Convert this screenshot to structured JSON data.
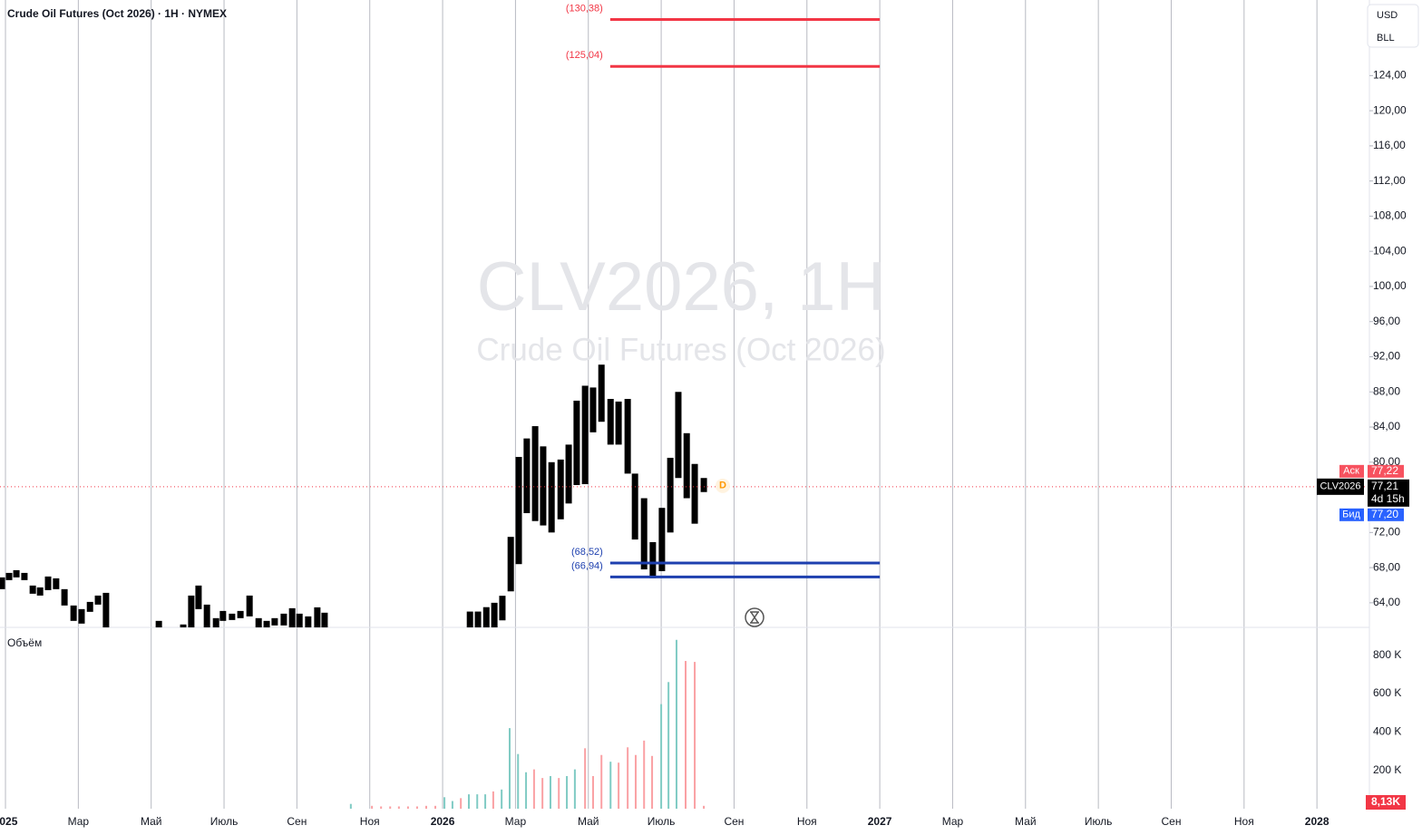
{
  "chart_data": [
    {
      "type": "candlestick",
      "title": "Crude Oil Futures (Oct 2026) · 1H · NYMEX",
      "watermark": {
        "symbol": "CLV2026, 1H",
        "description": "Crude Oil Futures (Oct 2026)"
      },
      "color": "#000000",
      "x": [
        -0.1,
        0.1,
        0.3,
        0.52,
        0.75,
        0.95,
        1.17,
        1.39,
        1.62,
        1.87,
        2.09,
        2.32,
        2.54,
        2.76,
        4.21,
        4.88,
        5.1,
        5.3,
        5.53,
        5.78,
        5.97,
        6.22,
        6.45,
        6.7,
        6.95,
        7.17,
        7.39,
        7.64,
        7.87,
        8.07,
        8.31,
        8.56,
        8.76,
        12.75,
        12.97,
        13.2,
        13.42,
        13.64,
        13.87,
        14.09,
        14.31,
        14.54,
        14.76,
        14.99,
        15.24,
        15.46,
        15.68,
        15.91,
        16.13,
        16.36,
        16.61,
        16.83,
        17.08,
        17.28,
        17.53,
        17.77,
        18.02,
        18.25,
        18.47,
        18.7,
        18.92,
        19.17
      ],
      "open": [
        66.89,
        67.4,
        67.71,
        67.4,
        65.96,
        65.75,
        66.99,
        66.78,
        65.55,
        63.69,
        63.28,
        64.1,
        64.82,
        65.13,
        61.94,
        61.53,
        64.82,
        65.96,
        63.79,
        62.25,
        63.07,
        62.76,
        63.07,
        64.82,
        62.25,
        61.94,
        62.25,
        62.76,
        63.38,
        62.76,
        62.45,
        63.48,
        62.87,
        63.0,
        63.0,
        63.5,
        64.0,
        64.8,
        71.5,
        80.6,
        82.7,
        84.1,
        81.8,
        80.0,
        80.3,
        82.0,
        87.0,
        88.7,
        88.5,
        91.1,
        87.2,
        86.9,
        87.2,
        78.7,
        75.9,
        70.9,
        74.8,
        80.5,
        88.0,
        83.3,
        79.8,
        78.2
      ],
      "close": [
        65.55,
        66.58,
        66.89,
        66.58,
        65.03,
        64.82,
        65.44,
        65.55,
        63.69,
        61.94,
        61.63,
        62.97,
        63.79,
        61.0,
        61.0,
        61.0,
        61.0,
        63.28,
        61.0,
        61.0,
        61.94,
        62.04,
        62.25,
        62.45,
        61.0,
        61.0,
        61.42,
        61.42,
        61.0,
        61.0,
        61.0,
        61.0,
        61.0,
        61.0,
        61.0,
        61.0,
        61.0,
        62.0,
        65.3,
        68.4,
        74.2,
        73.3,
        72.8,
        72.0,
        73.5,
        75.3,
        77.4,
        77.5,
        83.4,
        84.6,
        82.0,
        82.0,
        78.7,
        71.2,
        67.8,
        66.8,
        67.6,
        72.0,
        78.2,
        75.9,
        73.0,
        76.6
      ],
      "xlim": [
        -0.15,
        37.44
      ],
      "ylim": [
        61.2,
        132.6
      ],
      "yticks": [
        {
          "value": 64,
          "label": "64,00"
        },
        {
          "value": 68,
          "label": "68,00"
        },
        {
          "value": 72,
          "label": "72,00"
        },
        {
          "value": 76,
          "label": "76,00"
        },
        {
          "value": 80,
          "label": "80,00"
        },
        {
          "value": 84,
          "label": "84,00"
        },
        {
          "value": 88,
          "label": "88,00"
        },
        {
          "value": 92,
          "label": "92,00"
        },
        {
          "value": 96,
          "label": "96,00"
        },
        {
          "value": 100,
          "label": "100,00"
        },
        {
          "value": 104,
          "label": "104,00"
        },
        {
          "value": 108,
          "label": "108,00"
        },
        {
          "value": 112,
          "label": "112,00"
        },
        {
          "value": 116,
          "label": "116,00"
        },
        {
          "value": 120,
          "label": "120,00"
        },
        {
          "value": 124,
          "label": "124,00"
        }
      ],
      "levels": [
        {
          "value": 130.38,
          "label": "(130,38)",
          "color": "#f23645",
          "x": [
            16.6,
            24
          ]
        },
        {
          "value": 125.04,
          "label": "(125,04)",
          "color": "#f23645",
          "x": [
            16.6,
            24
          ]
        },
        {
          "value": 68.52,
          "label": "(68,52)",
          "color": "#1e40af",
          "x": [
            16.6,
            24
          ]
        },
        {
          "value": 66.94,
          "label": "(66,94)",
          "color": "#1e40af",
          "x": [
            16.6,
            24
          ]
        }
      ],
      "last": {
        "value": 77.21,
        "label": "77,21",
        "symbol": "CLV2026",
        "countdown": "4d 15h",
        "color": "#f23645"
      },
      "ask": {
        "name": "Аск",
        "value": 77.22,
        "label": "77,22",
        "color": "#f7525f"
      },
      "bid": {
        "name": "Бид",
        "value": 77.2,
        "label": "77,20",
        "color": "#2962ff"
      },
      "currency": "USD",
      "unit": "BLL",
      "event_marker": "D"
    },
    {
      "type": "bar",
      "title": "Объём",
      "x": [
        9.48,
        10.06,
        10.31,
        10.56,
        10.8,
        11.05,
        11.3,
        11.55,
        11.8,
        12.05,
        12.27,
        12.5,
        12.72,
        12.95,
        13.17,
        13.39,
        13.62,
        13.84,
        14.07,
        14.29,
        14.51,
        14.74,
        14.96,
        15.19,
        15.41,
        15.63,
        15.91,
        16.13,
        16.36,
        16.61,
        16.83,
        17.08,
        17.3,
        17.53,
        17.75,
        18.0,
        18.2,
        18.42,
        18.67,
        18.92,
        19.17
      ],
      "values": [
        25000,
        15000,
        12000,
        12000,
        12000,
        12000,
        12000,
        15000,
        15000,
        60000,
        40000,
        55000,
        75000,
        75000,
        75000,
        90000,
        100000,
        420000,
        285000,
        190000,
        205000,
        160000,
        170000,
        160000,
        170000,
        205000,
        315000,
        170000,
        280000,
        245000,
        240000,
        320000,
        280000,
        355000,
        275000,
        545000,
        660000,
        880000,
        770000,
        765000,
        15000
      ],
      "colors": [
        "#80cbc4",
        "#faa1a4",
        "#faa1a4",
        "#faa1a4",
        "#faa1a4",
        "#faa1a4",
        "#faa1a4",
        "#faa1a4",
        "#faa1a4",
        "#80cbc4",
        "#80cbc4",
        "#faa1a4",
        "#80cbc4",
        "#80cbc4",
        "#80cbc4",
        "#faa1a4",
        "#80cbc4",
        "#80cbc4",
        "#80cbc4",
        "#80cbc4",
        "#faa1a4",
        "#faa1a4",
        "#80cbc4",
        "#faa1a4",
        "#80cbc4",
        "#80cbc4",
        "#faa1a4",
        "#faa1a4",
        "#faa1a4",
        "#80cbc4",
        "#faa1a4",
        "#faa1a4",
        "#faa1a4",
        "#faa1a4",
        "#faa1a4",
        "#80cbc4",
        "#80cbc4",
        "#80cbc4",
        "#faa1a4",
        "#faa1a4",
        "#faa1a4"
      ],
      "xlim": [
        -0.15,
        37.44
      ],
      "ylim": [
        0,
        945000
      ],
      "yticks": [
        {
          "value": 200000,
          "label": "200 K"
        },
        {
          "value": 400000,
          "label": "400 K"
        },
        {
          "value": 600000,
          "label": "600 K"
        },
        {
          "value": 800000,
          "label": "800 K"
        }
      ],
      "xticks": [
        {
          "value": 0,
          "label": "2025"
        },
        {
          "value": 2,
          "label": "Мар"
        },
        {
          "value": 4,
          "label": "Май"
        },
        {
          "value": 6,
          "label": "Июль"
        },
        {
          "value": 8,
          "label": "Сен"
        },
        {
          "value": 10,
          "label": "Ноя"
        },
        {
          "value": 12,
          "label": "2026"
        },
        {
          "value": 14,
          "label": "Мар"
        },
        {
          "value": 16,
          "label": "Май"
        },
        {
          "value": 18,
          "label": "Июль"
        },
        {
          "value": 20,
          "label": "Сен"
        },
        {
          "value": 22,
          "label": "Ноя"
        },
        {
          "value": 24,
          "label": "2027"
        },
        {
          "value": 26,
          "label": "Мар"
        },
        {
          "value": 28,
          "label": "Май"
        },
        {
          "value": 30,
          "label": "Июль"
        },
        {
          "value": 32,
          "label": "Сен"
        },
        {
          "value": 34,
          "label": "Ноя"
        },
        {
          "value": 36,
          "label": "2028"
        }
      ],
      "last": {
        "value": 8130,
        "label": "8,13K",
        "color": "#f23645"
      }
    }
  ]
}
